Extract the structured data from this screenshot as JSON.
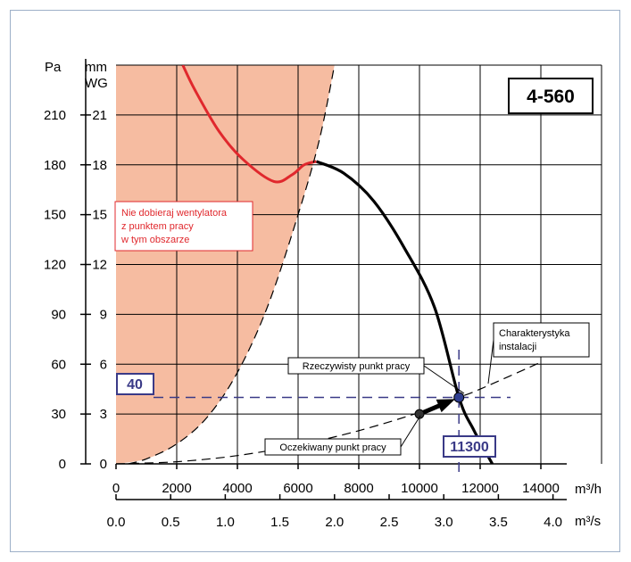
{
  "chart_data": {
    "type": "line",
    "model_label": "4-560",
    "x_axis_flow": {
      "unit": "m³/h",
      "ticks": [
        "0",
        "2000",
        "4000",
        "6000",
        "8000",
        "10000",
        "12000",
        "14000"
      ],
      "tick_values": [
        0,
        2000,
        4000,
        6000,
        8000,
        10000,
        12000,
        14000
      ],
      "range": [
        0,
        16000
      ]
    },
    "x_axis_flow_secondary": {
      "unit": "m³/s",
      "ticks": [
        "0.0",
        "0.5",
        "1.0",
        "1.5",
        "2.0",
        "2.5",
        "3.0",
        "3.5",
        "4.0"
      ],
      "tick_values": [
        0,
        0.5,
        1.0,
        1.5,
        2.0,
        2.5,
        3.0,
        3.5,
        4.0
      ]
    },
    "y_axis_pressure": {
      "unit": "Pa",
      "ticks": [
        "0",
        "30",
        "60",
        "90",
        "120",
        "150",
        "180",
        "210"
      ],
      "tick_values": [
        0,
        30,
        60,
        90,
        120,
        150,
        180,
        210
      ],
      "range": [
        0,
        240
      ]
    },
    "y_axis_secondary": {
      "unit_line1": "mm",
      "unit_line2": "WG",
      "ticks": [
        "0",
        "3",
        "6",
        "9",
        "12",
        "15",
        "18",
        "21"
      ]
    },
    "grid": true,
    "series": [
      {
        "kind": "fan-curve",
        "color": "#000000",
        "points": [
          [
            6600,
            182
          ],
          [
            7500,
            175
          ],
          [
            8500,
            158
          ],
          [
            9500,
            130
          ],
          [
            10500,
            94
          ],
          [
            11300,
            40
          ],
          [
            11800,
            20
          ],
          [
            12400,
            0
          ]
        ]
      },
      {
        "kind": "fan-curve-unstable",
        "color": "#e0282d",
        "points": [
          [
            2200,
            240
          ],
          [
            2600,
            225
          ],
          [
            3400,
            200
          ],
          [
            4200,
            183
          ],
          [
            5200,
            170
          ],
          [
            5800,
            174
          ],
          [
            6200,
            180
          ],
          [
            6600,
            182
          ]
        ]
      },
      {
        "kind": "system-curve",
        "color": "#000000",
        "dashed": true,
        "points": [
          [
            0,
            0
          ],
          [
            2000,
            1.3
          ],
          [
            4000,
            5
          ],
          [
            6000,
            11.3
          ],
          [
            8000,
            20
          ],
          [
            10000,
            31
          ],
          [
            11300,
            40
          ],
          [
            12000,
            45
          ],
          [
            14000,
            61.2
          ]
        ]
      },
      {
        "kind": "boundary",
        "color": "#000000",
        "dashed": true,
        "points": [
          [
            400,
            0
          ],
          [
            1000,
            3
          ],
          [
            2000,
            12
          ],
          [
            3000,
            28
          ],
          [
            4000,
            55
          ],
          [
            5000,
            95
          ],
          [
            6000,
            150
          ],
          [
            6700,
            195
          ],
          [
            7200,
            240
          ]
        ]
      }
    ],
    "forbidden_region": {
      "color": "#f6bca1",
      "text_lines": [
        "Nie dobieraj wentylatora",
        "z punktem pracy",
        "w tym obszarze"
      ],
      "boundary_points": [
        [
          0,
          0
        ],
        [
          1000,
          3
        ],
        [
          2000,
          12
        ],
        [
          3000,
          28
        ],
        [
          4000,
          55
        ],
        [
          5000,
          95
        ],
        [
          6000,
          150
        ],
        [
          6700,
          195
        ],
        [
          7200,
          240
        ],
        [
          0,
          240
        ]
      ]
    },
    "annotations": {
      "actual_point": {
        "label": "Rzeczywisty punkt pracy",
        "x": 11300,
        "y": 40,
        "color": "#2e3d8f"
      },
      "expected_point": {
        "label": "Oczekiwany punkt pracy",
        "x": 10000,
        "y": 30,
        "color": "#333333"
      },
      "system_label": {
        "line1": "Charakterystyka",
        "line2": "instalacji"
      },
      "pressure_marker": {
        "value_label": "40",
        "value": 40
      },
      "flow_marker": {
        "value_label": "11300",
        "value": 11300
      },
      "marker_color": "#3a3a87"
    }
  }
}
